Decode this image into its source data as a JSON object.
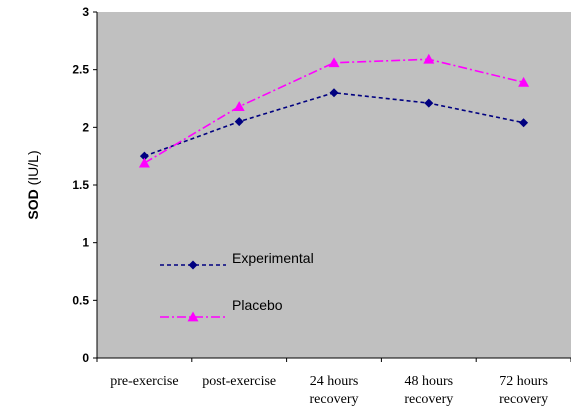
{
  "chart_data": {
    "type": "line",
    "categories": [
      [
        "pre-exercise"
      ],
      [
        "post-exercise"
      ],
      [
        "24 hours",
        "recovery"
      ],
      [
        "48 hours",
        "recovery"
      ],
      [
        "72 hours",
        "recovery"
      ]
    ],
    "series": [
      {
        "name": "Experimental",
        "values": [
          1.75,
          2.05,
          2.3,
          2.21,
          2.04
        ],
        "color": "#000080",
        "marker": "diamond",
        "dash": "dashed"
      },
      {
        "name": "Placebo",
        "values": [
          1.69,
          2.18,
          2.56,
          2.59,
          2.39
        ],
        "color": "#ff00ff",
        "marker": "triangle",
        "dash": "dash-dot"
      }
    ],
    "ylabel_bold": "SOD",
    "ylabel_unit": " (IU/L)",
    "xlabel": "",
    "title": "",
    "ylim": [
      0,
      3
    ],
    "yticks": [
      "0",
      "0.5",
      "1",
      "1.5",
      "2",
      "2.5",
      "3"
    ],
    "plot_background": "#c0c0c0",
    "grid": false,
    "legend_position": "inside-left"
  }
}
